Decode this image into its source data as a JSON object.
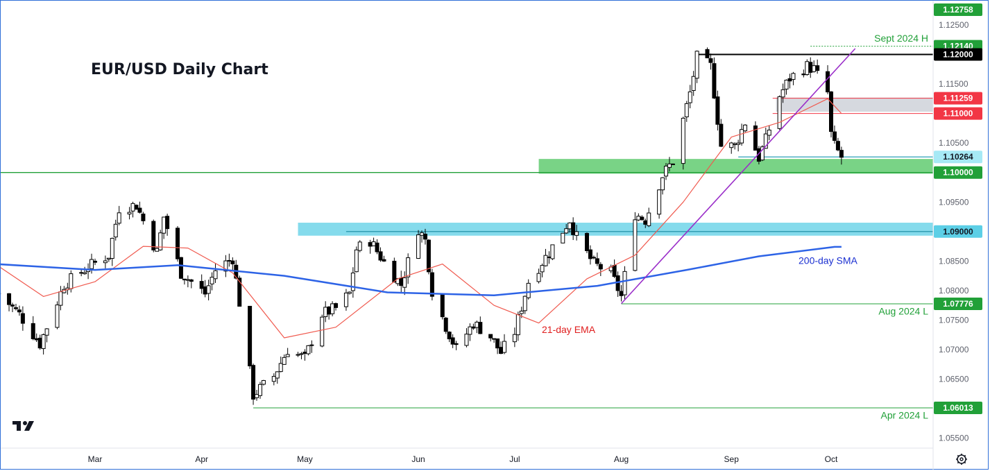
{
  "chart_data": {
    "type": "candlestick",
    "title": "EUR/USD Daily Chart",
    "ylim": [
      1.052,
      1.1285
    ],
    "y_ticks": [
      "1.12500",
      "1.11500",
      "1.11000",
      "1.10500",
      "1.09500",
      "1.08500",
      "1.08000",
      "1.07500",
      "1.07000",
      "1.06500",
      "1.05500"
    ],
    "x_months": [
      {
        "label": "Mar",
        "date": "2024-03-01"
      },
      {
        "label": "Apr",
        "date": "2024-04-01"
      },
      {
        "label": "May",
        "date": "2024-05-01"
      },
      {
        "label": "Jun",
        "date": "2024-06-03"
      },
      {
        "label": "Jul",
        "date": "2024-07-01"
      },
      {
        "label": "Aug",
        "date": "2024-08-01"
      },
      {
        "label": "Sep",
        "date": "2024-09-02"
      },
      {
        "label": "Oct",
        "date": "2024-10-01"
      }
    ],
    "close_path": [
      [
        "2024-02-02",
        1.0795
      ],
      [
        "2024-02-08",
        1.076
      ],
      [
        "2024-02-14",
        1.071
      ],
      [
        "2024-02-21",
        1.081
      ],
      [
        "2024-02-28",
        1.084
      ],
      [
        "2024-03-05",
        1.086
      ],
      [
        "2024-03-08",
        1.094
      ],
      [
        "2024-03-13",
        1.0945
      ],
      [
        "2024-03-19",
        1.0865
      ],
      [
        "2024-03-21",
        1.0925
      ],
      [
        "2024-03-26",
        1.083
      ],
      [
        "2024-04-02",
        1.0795
      ],
      [
        "2024-04-05",
        1.0835
      ],
      [
        "2024-04-10",
        1.0855
      ],
      [
        "2024-04-12",
        1.078
      ],
      [
        "2024-04-16",
        1.0623
      ],
      [
        "2024-04-22",
        1.0655
      ],
      [
        "2024-04-26",
        1.07
      ],
      [
        "2024-05-01",
        1.0685
      ],
      [
        "2024-05-06",
        1.076
      ],
      [
        "2024-05-10",
        1.077
      ],
      [
        "2024-05-14",
        1.0795
      ],
      [
        "2024-05-16",
        1.087
      ],
      [
        "2024-05-20",
        1.0885
      ],
      [
        "2024-05-24",
        1.0848
      ],
      [
        "2024-05-29",
        1.081
      ],
      [
        "2024-06-03",
        1.0905
      ],
      [
        "2024-06-05",
        1.0885
      ],
      [
        "2024-06-07",
        1.08
      ],
      [
        "2024-06-11",
        1.074
      ],
      [
        "2024-06-14",
        1.07
      ],
      [
        "2024-06-19",
        1.0745
      ],
      [
        "2024-06-24",
        1.0722
      ],
      [
        "2024-06-27",
        1.0695
      ],
      [
        "2024-07-01",
        1.073
      ],
      [
        "2024-07-05",
        1.0815
      ],
      [
        "2024-07-11",
        1.0865
      ],
      [
        "2024-07-17",
        1.092
      ],
      [
        "2024-07-19",
        1.089
      ],
      [
        "2024-07-24",
        1.0845
      ],
      [
        "2024-07-29",
        1.083
      ],
      [
        "2024-08-01",
        1.079
      ],
      [
        "2024-08-05",
        1.093
      ],
      [
        "2024-08-08",
        1.092
      ],
      [
        "2024-08-13",
        1.0995
      ],
      [
        "2024-08-16",
        1.102
      ],
      [
        "2024-08-21",
        1.1135
      ],
      [
        "2024-08-23",
        1.1195
      ],
      [
        "2024-08-27",
        1.118
      ],
      [
        "2024-08-30",
        1.1045
      ],
      [
        "2024-09-03",
        1.1045
      ],
      [
        "2024-09-06",
        1.1085
      ],
      [
        "2024-09-10",
        1.1025
      ],
      [
        "2024-09-12",
        1.1055
      ],
      [
        "2024-09-16",
        1.113
      ],
      [
        "2024-09-19",
        1.116
      ],
      [
        "2024-09-24",
        1.118
      ],
      [
        "2024-09-26",
        1.1175
      ],
      [
        "2024-09-30",
        1.1135
      ],
      [
        "2024-10-01",
        1.1065
      ],
      [
        "2024-10-02",
        1.1045
      ],
      [
        "2024-10-04",
        1.1026
      ]
    ],
    "ema21": [
      [
        "2024-02-01",
        1.0845
      ],
      [
        "2024-02-15",
        1.079
      ],
      [
        "2024-03-01",
        1.0815
      ],
      [
        "2024-03-15",
        1.0875
      ],
      [
        "2024-03-28",
        1.0872
      ],
      [
        "2024-04-10",
        1.083
      ],
      [
        "2024-04-25",
        1.072
      ],
      [
        "2024-05-10",
        1.0738
      ],
      [
        "2024-05-28",
        1.082
      ],
      [
        "2024-06-10",
        1.0845
      ],
      [
        "2024-06-25",
        1.0775
      ],
      [
        "2024-07-08",
        1.0745
      ],
      [
        "2024-07-22",
        1.082
      ],
      [
        "2024-08-05",
        1.086
      ],
      [
        "2024-08-19",
        1.095
      ],
      [
        "2024-09-02",
        1.106
      ],
      [
        "2024-09-16",
        1.1085
      ],
      [
        "2024-09-30",
        1.1125
      ],
      [
        "2024-10-04",
        1.11
      ]
    ],
    "sma200": [
      [
        "2024-02-01",
        1.0845
      ],
      [
        "2024-03-01",
        1.0835
      ],
      [
        "2024-03-25",
        1.0843
      ],
      [
        "2024-04-25",
        1.0825
      ],
      [
        "2024-05-25",
        1.0797
      ],
      [
        "2024-06-25",
        1.0792
      ],
      [
        "2024-07-25",
        1.0808
      ],
      [
        "2024-08-20",
        1.0835
      ],
      [
        "2024-09-10",
        1.0858
      ],
      [
        "2024-10-02",
        1.0874
      ],
      [
        "2024-10-04",
        1.0874
      ]
    ],
    "trendline": {
      "from": [
        "2024-08-01",
        1.0778
      ],
      "to": [
        "2024-10-08",
        1.121
      ]
    },
    "zones": [
      {
        "from_date": "2024-07-08",
        "low": 1.0998,
        "high": 1.1023,
        "color": "#4cc45e"
      },
      {
        "from_date": "2024-04-29",
        "low": 1.0893,
        "high": 1.0915,
        "color": "#5ccfe6"
      },
      {
        "from_date": "2024-09-15",
        "low": 1.1103,
        "high": 1.1127,
        "color": "#c8ccd4"
      }
    ],
    "levels": [
      {
        "label": "1.12758",
        "value": 1.12758,
        "bg": "#21a038",
        "fg": "#ffffff"
      },
      {
        "label": "1.12140",
        "value": 1.1214,
        "bg": "#21a038",
        "fg": "#ffffff"
      },
      {
        "label": "1.12000",
        "value": 1.12,
        "bg": "#000000",
        "fg": "#ffffff"
      },
      {
        "label": "1.11259",
        "value": 1.11259,
        "bg": "#f23645",
        "fg": "#ffffff"
      },
      {
        "label": "1.11000",
        "value": 1.11,
        "bg": "#f23645",
        "fg": "#ffffff"
      },
      {
        "label": "1.10264",
        "value": 1.10264,
        "bg": "#a6e9f5",
        "fg": "#131722"
      },
      {
        "label": "1.10000",
        "value": 1.1,
        "bg": "#21a038",
        "fg": "#ffffff"
      },
      {
        "label": "1.09000",
        "value": 1.09,
        "bg": "#5ccfe6",
        "fg": "#131722"
      },
      {
        "label": "1.07776",
        "value": 1.07776,
        "bg": "#21a038",
        "fg": "#ffffff"
      },
      {
        "label": "1.06013",
        "value": 1.06013,
        "bg": "#21a038",
        "fg": "#ffffff"
      }
    ],
    "annotations": [
      {
        "text": "Sept 2024 H",
        "color": "#21a038"
      },
      {
        "text": "Aug 2024 L",
        "color": "#21a038"
      },
      {
        "text": "Apr 2024 L",
        "color": "#21a038"
      },
      {
        "text": "21-day EMA",
        "color": "#e01e1e"
      },
      {
        "text": "200-day SMA",
        "color": "#1a2fd1"
      }
    ],
    "colors": {
      "ema21": "#f05a4f",
      "sma200": "#2d63e6",
      "trendline": "#9a2ec9",
      "candle": "#000000",
      "level_green": "#21a038"
    }
  }
}
